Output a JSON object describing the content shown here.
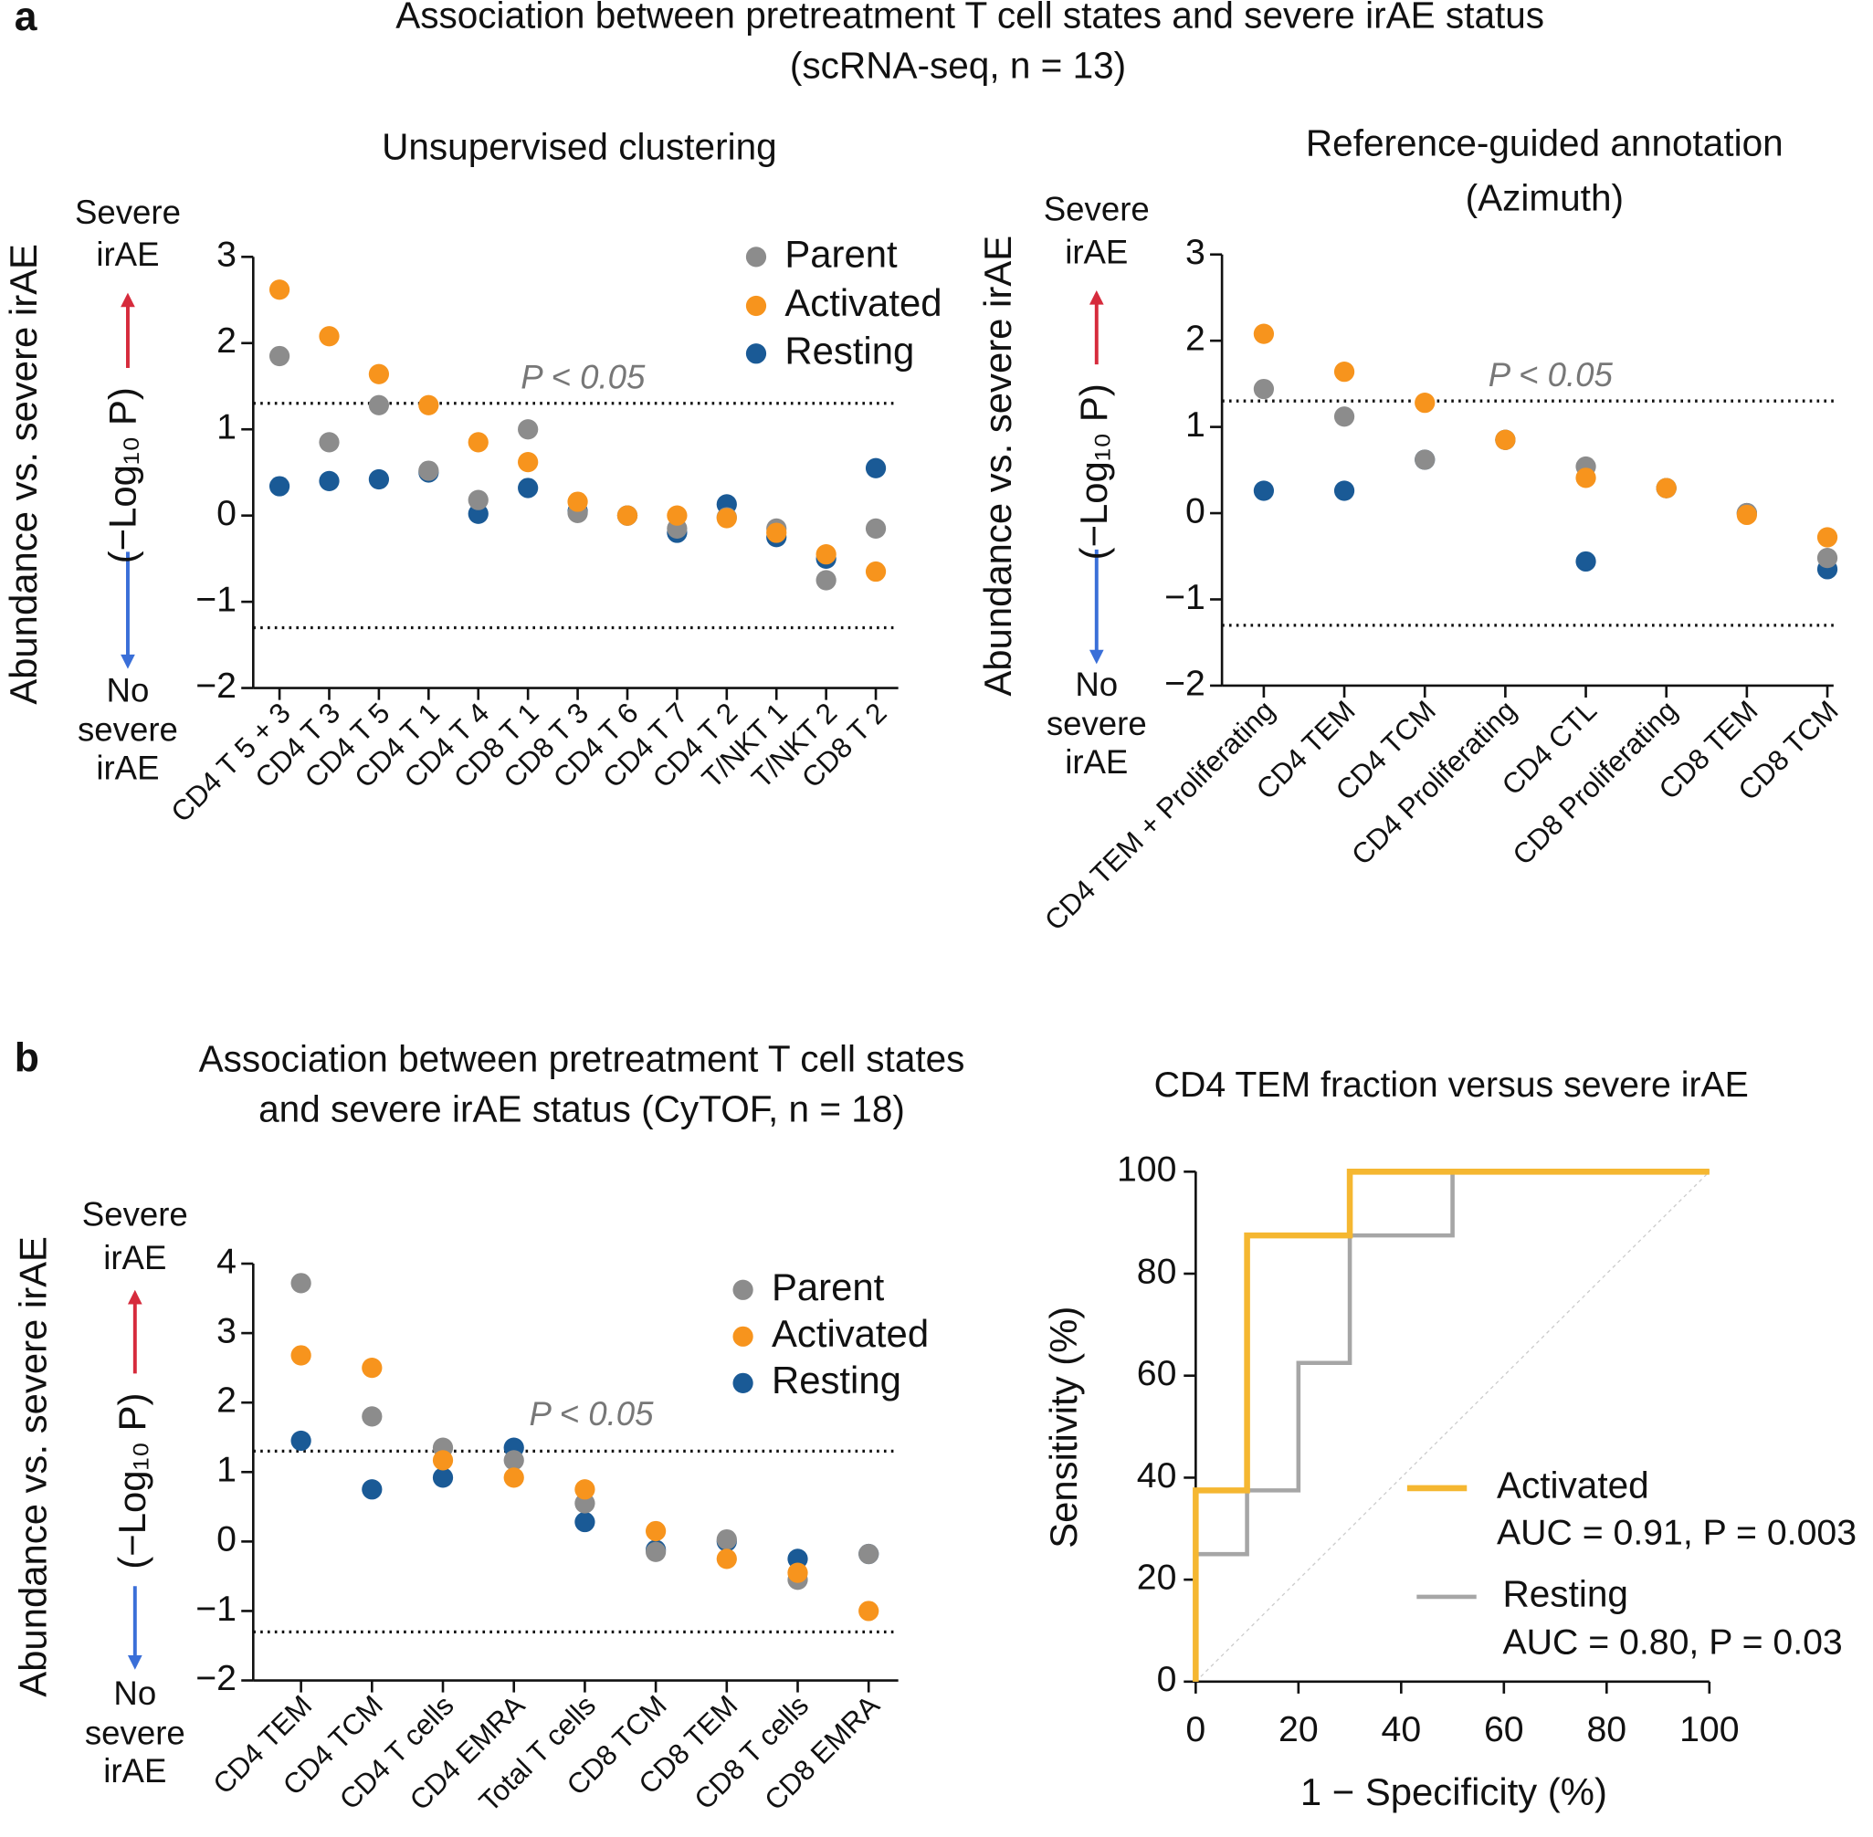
{
  "figure": {
    "panel_labels": [
      "a",
      "b"
    ],
    "title": [
      "Association between pretreatment T cell states and severe irAE status",
      "(scRNA-seq, n = 13)"
    ]
  },
  "chart_data": [
    {
      "type": "dot",
      "title": [
        "Unsupervised clustering"
      ],
      "ylabel": [
        "Abundance vs. severe irAE",
        "(−Log₁₀ P)"
      ],
      "annotations": {
        "severe": [
          "Severe",
          "irAE"
        ],
        "no_severe": [
          "No",
          "severe",
          "irAE"
        ],
        "threshold_label": "P < 0.05"
      },
      "thresholds": [
        1.301,
        -1.301
      ],
      "categories": [
        "CD4 T 5 + 3",
        "CD4 T 3",
        "CD4 T 5",
        "CD4 T 1",
        "CD4 T 4",
        "CD8 T 1",
        "CD8 T 3",
        "CD4 T 6",
        "CD4 T 7",
        "CD4 T 2",
        "T/NKT 1",
        "T/NKT 2",
        "CD8 T 2"
      ],
      "series": [
        {
          "name": "Parent",
          "color": "#8c8c8c",
          "values": [
            1.85,
            0.85,
            1.28,
            0.52,
            0.18,
            1.0,
            0.03,
            0.0,
            -0.15,
            -0.02,
            -0.15,
            -0.75,
            -0.15
          ]
        },
        {
          "name": "Activated",
          "color": "#f7941d",
          "values": [
            2.62,
            2.08,
            1.64,
            1.28,
            0.85,
            0.62,
            0.16,
            0.0,
            0.0,
            -0.03,
            -0.2,
            -0.45,
            -0.65
          ]
        },
        {
          "name": "Resting",
          "color": "#1a5a96",
          "values": [
            0.34,
            0.4,
            0.42,
            0.5,
            0.02,
            0.32,
            0.05,
            0.0,
            -0.2,
            0.13,
            -0.25,
            -0.5,
            0.55
          ]
        }
      ],
      "ylim": [
        -2,
        3
      ],
      "yticks": [
        {
          "value": -2,
          "label": "−2"
        },
        {
          "value": -1,
          "label": "−1"
        },
        0,
        1,
        2,
        3
      ],
      "legend": "upper right"
    },
    {
      "type": "dot",
      "title": [
        "Reference-guided annotation",
        "(Azimuth)"
      ],
      "ylabel": [
        "Abundance vs. severe irAE",
        "(−Log₁₀ P)"
      ],
      "annotations": {
        "severe": [
          "Severe",
          "irAE"
        ],
        "no_severe": [
          "No",
          "severe",
          "irAE"
        ],
        "threshold_label": "P < 0.05"
      },
      "thresholds": [
        1.301,
        -1.301
      ],
      "categories": [
        "CD4 TEM + Proliferating",
        "CD4 TEM",
        "CD4 TCM",
        "CD4 Proliferating",
        "CD4 CTL",
        "CD8 Proliferating",
        "CD8 TEM",
        "CD8 TCM"
      ],
      "series": [
        {
          "color": "#8c8c8c",
          "values": [
            1.44,
            1.12,
            0.62,
            0.85,
            0.54,
            0.29,
            0.0,
            -0.52
          ]
        },
        {
          "color": "#f7941d",
          "values": [
            2.08,
            1.64,
            1.28,
            0.85,
            0.41,
            0.29,
            -0.02,
            -0.28
          ]
        },
        {
          "color": "#1a5a96",
          "values": [
            0.26,
            0.26,
            0.62,
            0.85,
            -0.56,
            0.29,
            0.0,
            -0.65
          ]
        }
      ],
      "ylim": [
        -2,
        3
      ],
      "yticks": [
        {
          "value": -2,
          "label": "−2"
        },
        {
          "value": -1,
          "label": "−1"
        },
        0,
        1,
        2,
        3
      ],
      "legend": "none"
    },
    {
      "type": "dot",
      "title": [
        "Association between pretreatment T cell states",
        "and severe irAE status (CyTOF, n = 18)"
      ],
      "ylabel": [
        "Abundance vs. severe irAE",
        "(−Log₁₀ P)"
      ],
      "annotations": {
        "severe": [
          "Severe",
          "irAE"
        ],
        "no_severe": [
          "No",
          "severe",
          "irAE"
        ],
        "threshold_label": "P < 0.05"
      },
      "thresholds": [
        1.301,
        -1.301
      ],
      "categories": [
        "CD4 TEM",
        "CD4 TCM",
        "CD4 T cells",
        "CD4 EMRA",
        "Total T cells",
        "CD8 TCM",
        "CD8 TEM",
        "CD8 T cells",
        "CD8 EMRA"
      ],
      "series": [
        {
          "name": "Parent",
          "color": "#8c8c8c",
          "values": [
            3.72,
            1.8,
            1.35,
            1.17,
            0.55,
            -0.15,
            0.03,
            -0.55,
            -0.18
          ]
        },
        {
          "name": "Activated",
          "color": "#f7941d",
          "values": [
            2.68,
            2.5,
            1.17,
            0.92,
            0.75,
            0.15,
            -0.25,
            -0.45,
            -1.0
          ]
        },
        {
          "name": "Resting",
          "color": "#1a5a96",
          "values": [
            1.45,
            0.75,
            0.92,
            1.35,
            0.28,
            -0.12,
            0.0,
            -0.25,
            -0.18
          ]
        }
      ],
      "ylim": [
        -2,
        4
      ],
      "yticks": [
        {
          "value": -2,
          "label": "−2"
        },
        {
          "value": -1,
          "label": "−1"
        },
        0,
        1,
        2,
        3,
        4
      ],
      "legend": "upper right"
    },
    {
      "type": "line",
      "title": [
        "CD4 TEM fraction versus severe irAE"
      ],
      "xlabel": "1 − Specificity (%)",
      "ylabel": "Sensitivity (%)",
      "series": [
        {
          "name": "Activated",
          "auc_label": "AUC = 0.91, P = 0.003",
          "color": "#f5b731",
          "x": [
            0,
            0,
            10,
            10,
            30,
            30,
            100
          ],
          "values": [
            0,
            37.5,
            37.5,
            87.5,
            87.5,
            100,
            100
          ]
        },
        {
          "name": "Resting",
          "auc_label": "AUC = 0.80, P = 0.03",
          "color": "#a6a6a6",
          "x": [
            0,
            0,
            10,
            10,
            20,
            20,
            30,
            30,
            50,
            50,
            100
          ],
          "values": [
            0,
            25,
            25,
            37.5,
            37.5,
            62.5,
            62.5,
            87.5,
            87.5,
            100,
            100
          ]
        }
      ],
      "xlim": [
        0,
        100
      ],
      "ylim": [
        0,
        100
      ],
      "xticks": [
        0,
        20,
        40,
        60,
        80,
        100
      ],
      "yticks": [
        0,
        20,
        40,
        60,
        80,
        100
      ],
      "diagonal": true,
      "legend": "lower right"
    }
  ]
}
